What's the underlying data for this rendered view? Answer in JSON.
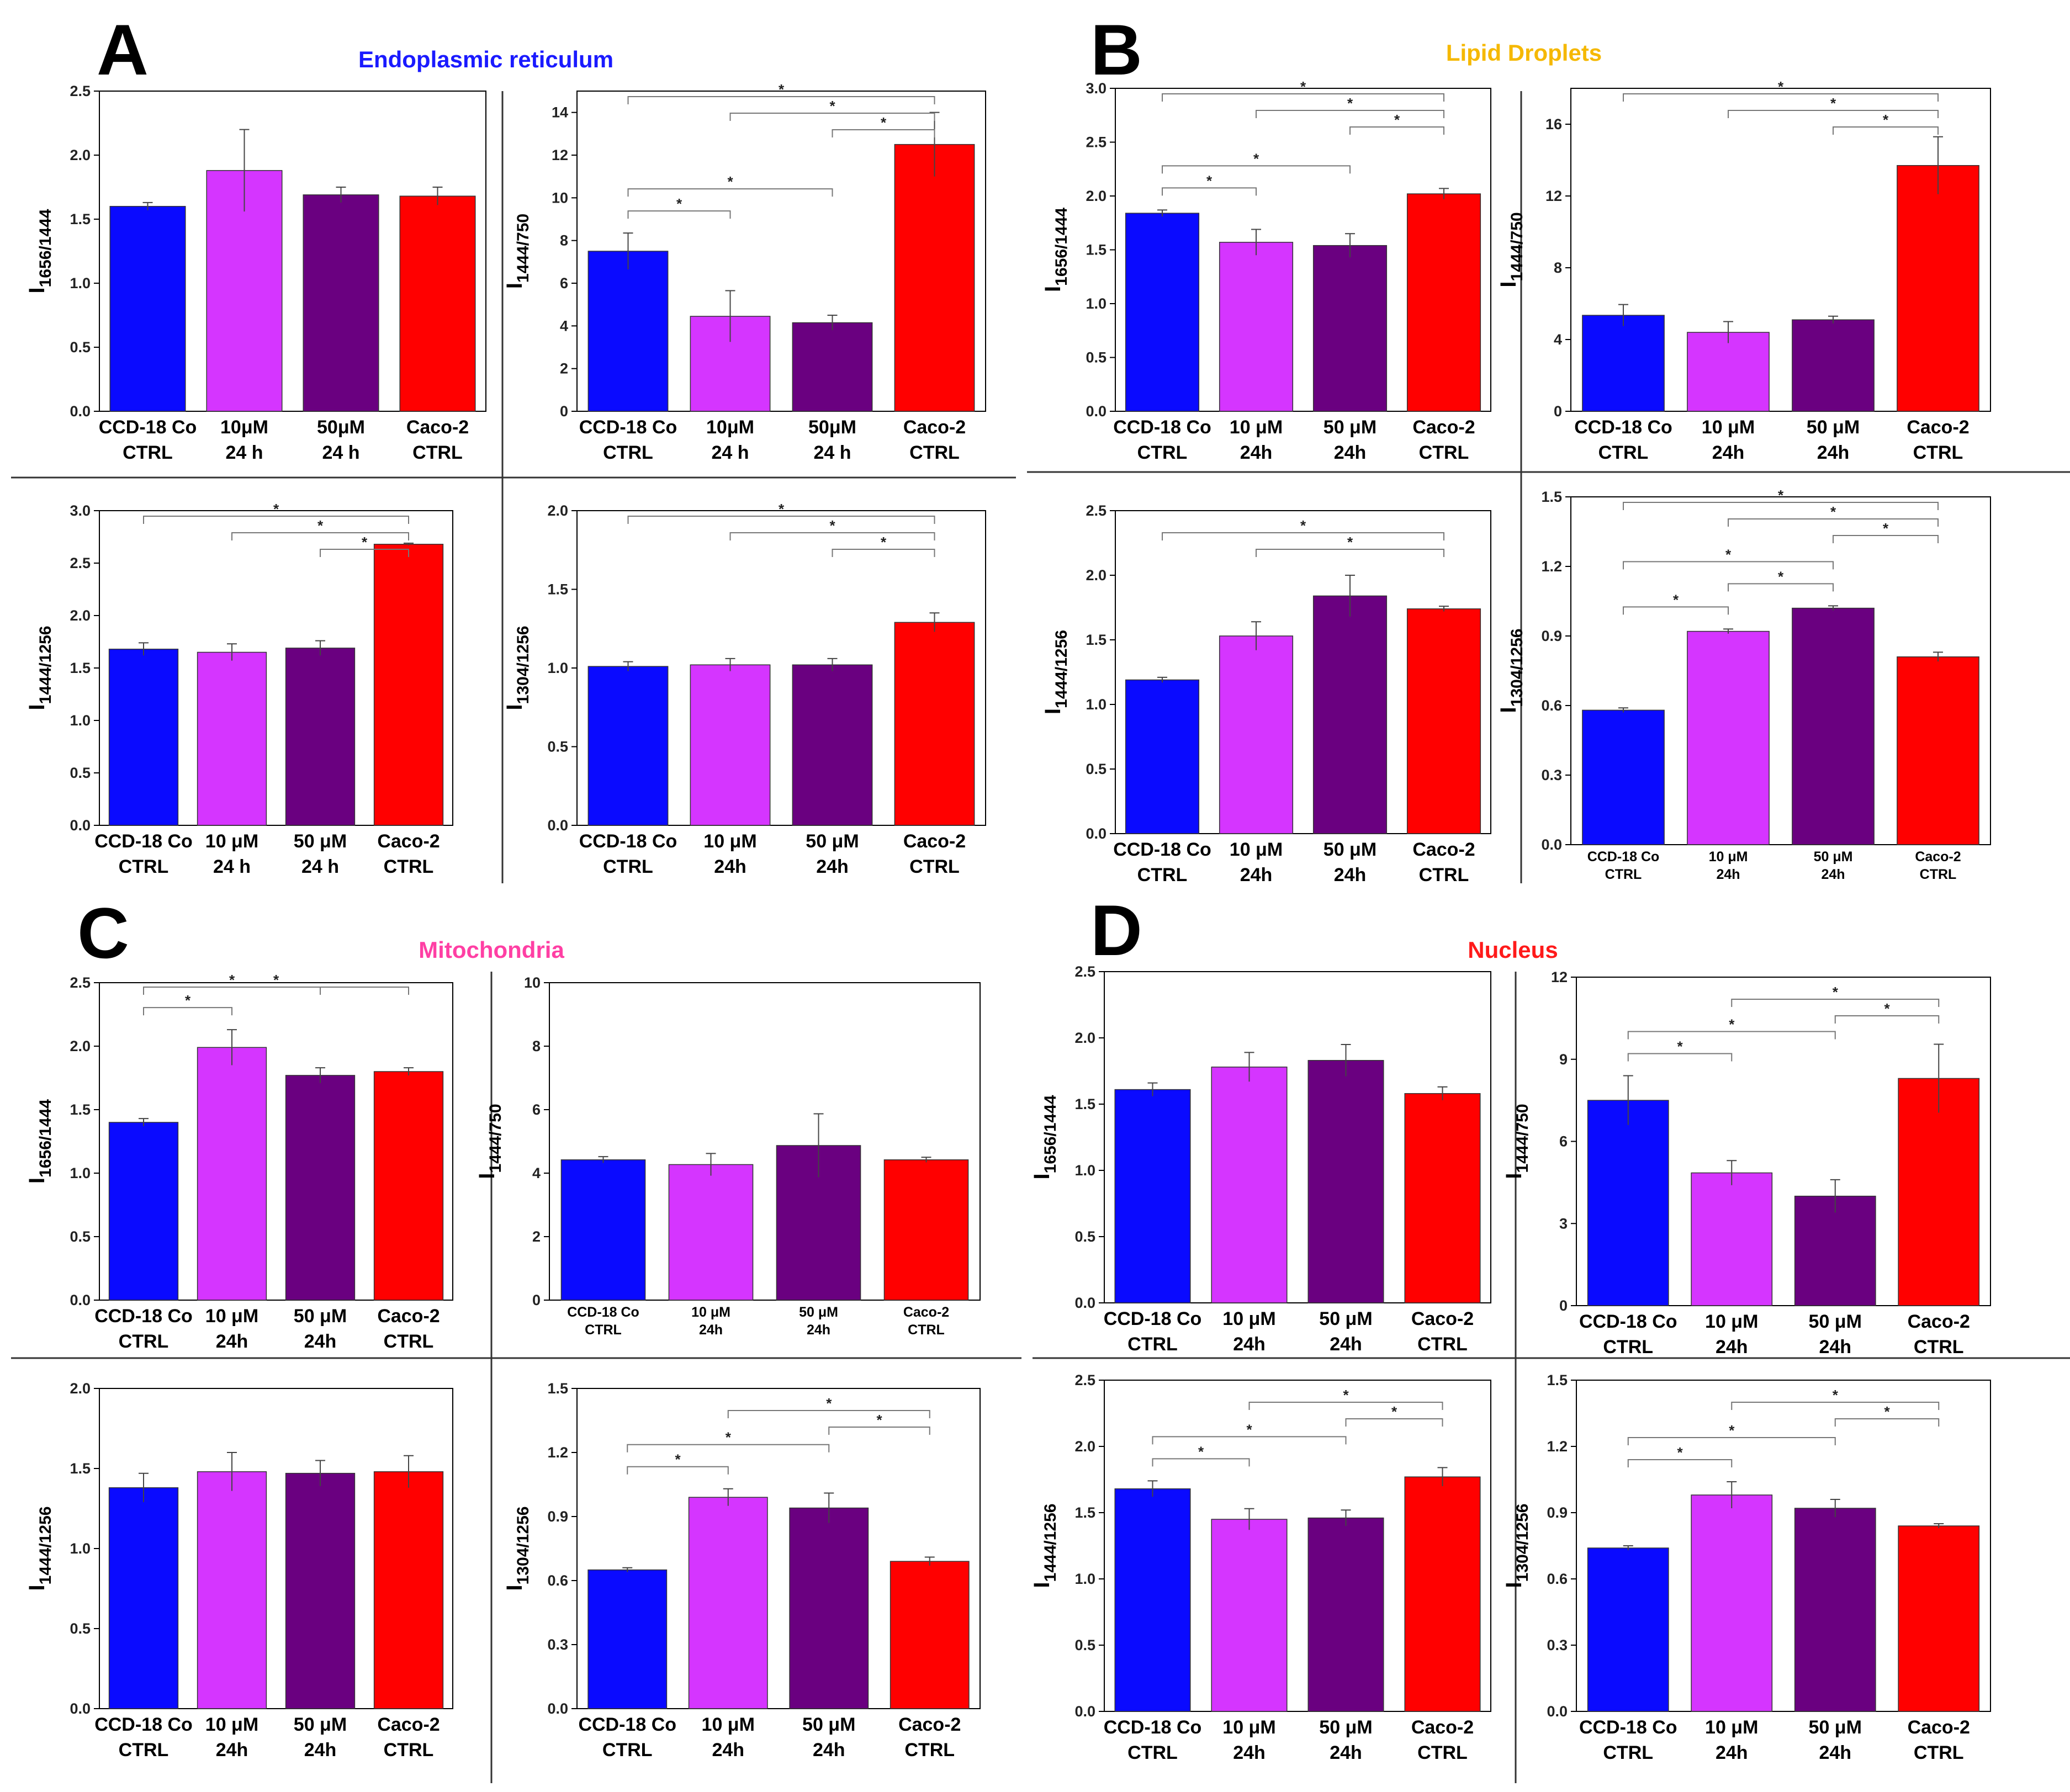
{
  "panels": [
    {
      "letter": "A",
      "title": "Endoplasmic reticulum",
      "title_color": "#1a1aff"
    },
    {
      "letter": "B",
      "title": "Lipid Droplets",
      "title_color": "#f5b800"
    },
    {
      "letter": "C",
      "title": "Mitochondria",
      "title_color": "#ff3fa4"
    },
    {
      "letter": "D",
      "title": "Nucleus",
      "title_color": "#ff1a1a"
    }
  ],
  "bar_colors": [
    "#0a0aff",
    "#d535ff",
    "#6a0080",
    "#ff0000"
  ],
  "chart_data": [
    {
      "id": "A1",
      "type": "bar",
      "ylabel_main": "I",
      "ylabel_sub": "1656/1444",
      "ylim": [
        0,
        2.5
      ],
      "ticks": [
        0,
        0.5,
        1.0,
        1.5,
        2.0,
        2.5
      ],
      "tick_labels": [
        "0.0",
        "0.5",
        "1.0",
        "1.5",
        "2.0",
        "2.5"
      ],
      "categories": [
        [
          "CCD-18 Co",
          "CTRL"
        ],
        [
          "10μM",
          "24 h"
        ],
        [
          "50μM",
          "24 h"
        ],
        [
          "Caco-2",
          "CTRL"
        ]
      ],
      "values": [
        1.6,
        1.88,
        1.69,
        1.68
      ],
      "errors": [
        0.03,
        0.32,
        0.06,
        0.07
      ],
      "significance": []
    },
    {
      "id": "A2",
      "type": "bar",
      "ylabel_main": "I",
      "ylabel_sub": "1444/750",
      "ylim": [
        0,
        15
      ],
      "ticks": [
        0,
        2,
        4,
        6,
        8,
        10,
        12,
        14
      ],
      "tick_labels": [
        "0",
        "2",
        "4",
        "6",
        "8",
        "10",
        "12",
        "14"
      ],
      "categories": [
        [
          "CCD-18 Co",
          "CTRL"
        ],
        [
          "10μM",
          "24 h"
        ],
        [
          "50μM",
          "24 h"
        ],
        [
          "Caco-2",
          "CTRL"
        ]
      ],
      "values": [
        7.5,
        4.45,
        4.15,
        12.5
      ],
      "errors": [
        0.85,
        1.2,
        0.35,
        1.5
      ],
      "significance": [
        {
          "from": 0,
          "to": 1,
          "level": 0,
          "label": "*"
        },
        {
          "from": 0,
          "to": 2,
          "level": 1,
          "label": "*"
        },
        {
          "from": 2,
          "to": 3,
          "level": 0,
          "label": "*",
          "top": true
        },
        {
          "from": 1,
          "to": 3,
          "level": 1,
          "label": "*",
          "top": true
        },
        {
          "from": 0,
          "to": 3,
          "level": 2,
          "label": "*",
          "top": true
        }
      ]
    },
    {
      "id": "A3",
      "type": "bar",
      "ylabel_main": "I",
      "ylabel_sub": "1444/1256",
      "ylim": [
        0,
        3.0
      ],
      "ticks": [
        0,
        0.5,
        1.0,
        1.5,
        2.0,
        2.5,
        3.0
      ],
      "tick_labels": [
        "0.0",
        "0.5",
        "1.0",
        "1.5",
        "2.0",
        "2.5",
        "3.0"
      ],
      "categories": [
        [
          "CCD-18 Co",
          "CTRL"
        ],
        [
          "10 μM",
          "24 h"
        ],
        [
          "50 μM",
          "24 h"
        ],
        [
          "Caco-2",
          "CTRL"
        ]
      ],
      "values": [
        1.68,
        1.65,
        1.69,
        2.68
      ],
      "errors": [
        0.06,
        0.08,
        0.07,
        0.01
      ],
      "significance": [
        {
          "from": 2,
          "to": 3,
          "level": 0,
          "label": "*",
          "top": true
        },
        {
          "from": 1,
          "to": 3,
          "level": 1,
          "label": "*",
          "top": true
        },
        {
          "from": 0,
          "to": 3,
          "level": 2,
          "label": "*",
          "top": true
        }
      ]
    },
    {
      "id": "A4",
      "type": "bar",
      "ylabel_main": "I",
      "ylabel_sub": "1304/1256",
      "ylim": [
        0,
        2.0
      ],
      "ticks": [
        0,
        0.5,
        1.0,
        1.5,
        2.0
      ],
      "tick_labels": [
        "0.0",
        "0.5",
        "1.0",
        "1.5",
        "2.0"
      ],
      "categories": [
        [
          "CCD-18 Co",
          "CTRL"
        ],
        [
          "10 μM",
          "24h"
        ],
        [
          "50 μM",
          "24h"
        ],
        [
          "Caco-2",
          "CTRL"
        ]
      ],
      "values": [
        1.01,
        1.02,
        1.02,
        1.29
      ],
      "errors": [
        0.03,
        0.04,
        0.04,
        0.06
      ],
      "significance": [
        {
          "from": 2,
          "to": 3,
          "level": 0,
          "label": "*",
          "top": true
        },
        {
          "from": 1,
          "to": 3,
          "level": 1,
          "label": "*",
          "top": true
        },
        {
          "from": 0,
          "to": 3,
          "level": 2,
          "label": "*",
          "top": true
        }
      ]
    },
    {
      "id": "B1",
      "type": "bar",
      "ylabel_main": "I",
      "ylabel_sub": "1656/1444",
      "ylim": [
        0,
        3.0
      ],
      "ticks": [
        0,
        0.5,
        1.0,
        1.5,
        2.0,
        2.5,
        3.0
      ],
      "tick_labels": [
        "0.0",
        "0.5",
        "1.0",
        "1.5",
        "2.0",
        "2.5",
        "3.0"
      ],
      "categories": [
        [
          "CCD-18 Co",
          "CTRL"
        ],
        [
          "10 μM",
          "24h"
        ],
        [
          "50 μM",
          "24h"
        ],
        [
          "Caco-2",
          "CTRL"
        ]
      ],
      "values": [
        1.84,
        1.57,
        1.54,
        2.02
      ],
      "errors": [
        0.03,
        0.12,
        0.11,
        0.05
      ],
      "significance": [
        {
          "from": 0,
          "to": 1,
          "level": 0,
          "label": "*"
        },
        {
          "from": 0,
          "to": 2,
          "level": 1,
          "label": "*"
        },
        {
          "from": 2,
          "to": 3,
          "level": 0,
          "label": "*",
          "top": true
        },
        {
          "from": 1,
          "to": 3,
          "level": 1,
          "label": "*",
          "top": true
        },
        {
          "from": 0,
          "to": 3,
          "level": 2,
          "label": "*",
          "top": true
        }
      ]
    },
    {
      "id": "B2",
      "type": "bar",
      "ylabel_main": "I",
      "ylabel_sub": "1444/750",
      "ylim": [
        0,
        18
      ],
      "ticks": [
        0,
        4,
        8,
        12,
        16
      ],
      "tick_labels": [
        "0",
        "4",
        "8",
        "12",
        "16"
      ],
      "categories": [
        [
          "CCD-18 Co",
          "CTRL"
        ],
        [
          "10 μM",
          "24h"
        ],
        [
          "50 μM",
          "24h"
        ],
        [
          "Caco-2",
          "CTRL"
        ]
      ],
      "values": [
        5.35,
        4.4,
        5.1,
        13.7
      ],
      "errors": [
        0.6,
        0.6,
        0.2,
        1.6
      ],
      "significance": [
        {
          "from": 2,
          "to": 3,
          "level": 0,
          "label": "*",
          "top": true
        },
        {
          "from": 1,
          "to": 3,
          "level": 1,
          "label": "*",
          "top": true
        },
        {
          "from": 0,
          "to": 3,
          "level": 2,
          "label": "*",
          "top": true
        }
      ]
    },
    {
      "id": "B3",
      "type": "bar",
      "ylabel_main": "I",
      "ylabel_sub": "1444/1256",
      "ylim": [
        0,
        2.5
      ],
      "ticks": [
        0,
        0.5,
        1.0,
        1.5,
        2.0,
        2.5
      ],
      "tick_labels": [
        "0.0",
        "0.5",
        "1.0",
        "1.5",
        "2.0",
        "2.5"
      ],
      "categories": [
        [
          "CCD-18 Co",
          "CTRL"
        ],
        [
          "10 μM",
          "24h"
        ],
        [
          "50 μM",
          "24h"
        ],
        [
          "Caco-2",
          "CTRL"
        ]
      ],
      "values": [
        1.19,
        1.53,
        1.84,
        1.74
      ],
      "errors": [
        0.02,
        0.11,
        0.16,
        0.02
      ],
      "significance": [
        {
          "from": 1,
          "to": 3,
          "level": 0,
          "label": "*",
          "top": true
        },
        {
          "from": 0,
          "to": 3,
          "level": 1,
          "label": "*",
          "top": true
        }
      ]
    },
    {
      "id": "B4",
      "type": "bar",
      "ylabel_main": "I",
      "ylabel_sub": "1304/1256",
      "ylim": [
        0,
        1.5
      ],
      "ticks": [
        0,
        0.3,
        0.6,
        0.9,
        1.2,
        1.5
      ],
      "tick_labels": [
        "0.0",
        "0.3",
        "0.6",
        "0.9",
        "1.2",
        "1.5"
      ],
      "small_labels": true,
      "categories": [
        [
          "CCD-18 Co",
          "CTRL"
        ],
        [
          "10 μM",
          "24h"
        ],
        [
          "50 μM",
          "24h"
        ],
        [
          "Caco-2",
          "CTRL"
        ]
      ],
      "values": [
        0.58,
        0.92,
        1.02,
        0.81
      ],
      "errors": [
        0.01,
        0.01,
        0.01,
        0.02
      ],
      "significance": [
        {
          "from": 0,
          "to": 1,
          "level": 0,
          "label": "*"
        },
        {
          "from": 1,
          "to": 2,
          "level": 0,
          "label": "*"
        },
        {
          "from": 0,
          "to": 2,
          "level": 1,
          "label": "*"
        },
        {
          "from": 2,
          "to": 3,
          "level": 0,
          "label": "*",
          "top": true
        },
        {
          "from": 1,
          "to": 3,
          "level": 1,
          "label": "*",
          "top": true
        },
        {
          "from": 0,
          "to": 3,
          "level": 2,
          "label": "*",
          "top": true
        }
      ]
    },
    {
      "id": "C1",
      "type": "bar",
      "ylabel_main": "I",
      "ylabel_sub": "1656/1444",
      "ylim": [
        0,
        2.5
      ],
      "ticks": [
        0,
        0.5,
        1.0,
        1.5,
        2.0,
        2.5
      ],
      "tick_labels": [
        "0.0",
        "0.5",
        "1.0",
        "1.5",
        "2.0",
        "2.5"
      ],
      "categories": [
        [
          "CCD-18 Co",
          "CTRL"
        ],
        [
          "10 μM",
          "24h"
        ],
        [
          "50 μM",
          "24h"
        ],
        [
          "Caco-2",
          "CTRL"
        ]
      ],
      "values": [
        1.4,
        1.99,
        1.77,
        1.8
      ],
      "errors": [
        0.03,
        0.14,
        0.06,
        0.03
      ],
      "significance": [
        {
          "from": 0,
          "to": 1,
          "level": 0,
          "label": "*"
        },
        {
          "from": 0,
          "to": 2,
          "level": 1,
          "label": "*"
        },
        {
          "from": 0,
          "to": 3,
          "level": 2,
          "label": "*"
        }
      ]
    },
    {
      "id": "C2",
      "type": "bar",
      "ylabel_main": "I",
      "ylabel_sub": "1444/750",
      "ylim": [
        0,
        10
      ],
      "ticks": [
        0,
        2,
        4,
        6,
        8,
        10
      ],
      "tick_labels": [
        "0",
        "2",
        "4",
        "6",
        "8",
        "10"
      ],
      "small_labels": true,
      "categories": [
        [
          "CCD-18 Co",
          "CTRL"
        ],
        [
          "10 μM",
          "24h"
        ],
        [
          "50 μM",
          "24h"
        ],
        [
          "Caco-2",
          "CTRL"
        ]
      ],
      "values": [
        4.42,
        4.27,
        4.87,
        4.42
      ],
      "errors": [
        0.1,
        0.35,
        1.0,
        0.08
      ],
      "significance": []
    },
    {
      "id": "C3",
      "type": "bar",
      "ylabel_main": "I",
      "ylabel_sub": "1444/1256",
      "ylim": [
        0,
        2.0
      ],
      "ticks": [
        0,
        0.5,
        1.0,
        1.5,
        2.0
      ],
      "tick_labels": [
        "0.0",
        "0.5",
        "1.0",
        "1.5",
        "2.0"
      ],
      "categories": [
        [
          "CCD-18 Co",
          "CTRL"
        ],
        [
          "10 μM",
          "24h"
        ],
        [
          "50 μM",
          "24h"
        ],
        [
          "Caco-2",
          "CTRL"
        ]
      ],
      "values": [
        1.38,
        1.48,
        1.47,
        1.48
      ],
      "errors": [
        0.09,
        0.12,
        0.08,
        0.1
      ],
      "significance": []
    },
    {
      "id": "C4",
      "type": "bar",
      "ylabel_main": "I",
      "ylabel_sub": "1304/1256",
      "ylim": [
        0,
        1.5
      ],
      "ticks": [
        0,
        0.3,
        0.6,
        0.9,
        1.2,
        1.5
      ],
      "tick_labels": [
        "0.0",
        "0.3",
        "0.6",
        "0.9",
        "1.2",
        "1.5"
      ],
      "categories": [
        [
          "CCD-18 Co",
          "CTRL"
        ],
        [
          "10 μM",
          "24h"
        ],
        [
          "50 μM",
          "24h"
        ],
        [
          "Caco-2",
          "CTRL"
        ]
      ],
      "values": [
        0.65,
        0.99,
        0.94,
        0.69
      ],
      "errors": [
        0.01,
        0.04,
        0.07,
        0.02
      ],
      "significance": [
        {
          "from": 0,
          "to": 1,
          "level": 0,
          "label": "*"
        },
        {
          "from": 0,
          "to": 2,
          "level": 1,
          "label": "*"
        },
        {
          "from": 2,
          "to": 3,
          "level": 0,
          "label": "*",
          "top": true
        },
        {
          "from": 1,
          "to": 3,
          "level": 1,
          "label": "*",
          "top": true
        }
      ]
    },
    {
      "id": "D1",
      "type": "bar",
      "ylabel_main": "I",
      "ylabel_sub": "1656/1444",
      "ylim": [
        0,
        2.5
      ],
      "ticks": [
        0,
        0.5,
        1.0,
        1.5,
        2.0,
        2.5
      ],
      "tick_labels": [
        "0.0",
        "0.5",
        "1.0",
        "1.5",
        "2.0",
        "2.5"
      ],
      "categories": [
        [
          "CCD-18 Co",
          "CTRL"
        ],
        [
          "10 μM",
          "24h"
        ],
        [
          "50 μM",
          "24h"
        ],
        [
          "Caco-2",
          "CTRL"
        ]
      ],
      "values": [
        1.61,
        1.78,
        1.83,
        1.58
      ],
      "errors": [
        0.05,
        0.11,
        0.12,
        0.05
      ],
      "significance": []
    },
    {
      "id": "D2",
      "type": "bar",
      "ylabel_main": "I",
      "ylabel_sub": "1444/750",
      "ylim": [
        0,
        12
      ],
      "ticks": [
        0,
        3,
        6,
        9,
        12
      ],
      "tick_labels": [
        "0",
        "3",
        "6",
        "9",
        "12"
      ],
      "categories": [
        [
          "CCD-18 Co",
          "CTRL"
        ],
        [
          "10 μM",
          "24h"
        ],
        [
          "50 μM",
          "24h"
        ],
        [
          "Caco-2",
          "CTRL"
        ]
      ],
      "values": [
        7.5,
        4.85,
        4.0,
        8.3
      ],
      "errors": [
        0.9,
        0.45,
        0.6,
        1.25
      ],
      "significance": [
        {
          "from": 0,
          "to": 1,
          "level": 0,
          "label": "*"
        },
        {
          "from": 0,
          "to": 2,
          "level": 1,
          "label": "*"
        },
        {
          "from": 2,
          "to": 3,
          "level": 0,
          "label": "*",
          "top": true
        },
        {
          "from": 1,
          "to": 3,
          "level": 1,
          "label": "*",
          "top": true
        }
      ]
    },
    {
      "id": "D3",
      "type": "bar",
      "ylabel_main": "I",
      "ylabel_sub": "1444/1256",
      "ylim": [
        0,
        2.5
      ],
      "ticks": [
        0,
        0.5,
        1.0,
        1.5,
        2.0,
        2.5
      ],
      "tick_labels": [
        "0.0",
        "0.5",
        "1.0",
        "1.5",
        "2.0",
        "2.5"
      ],
      "categories": [
        [
          "CCD-18 Co",
          "CTRL"
        ],
        [
          "10 μM",
          "24h"
        ],
        [
          "50 μM",
          "24h"
        ],
        [
          "Caco-2",
          "CTRL"
        ]
      ],
      "values": [
        1.68,
        1.45,
        1.46,
        1.77
      ],
      "errors": [
        0.06,
        0.08,
        0.06,
        0.07
      ],
      "significance": [
        {
          "from": 0,
          "to": 1,
          "level": 0,
          "label": "*"
        },
        {
          "from": 0,
          "to": 2,
          "level": 1,
          "label": "*"
        },
        {
          "from": 2,
          "to": 3,
          "level": 0,
          "label": "*",
          "top": true
        },
        {
          "from": 1,
          "to": 3,
          "level": 1,
          "label": "*",
          "top": true
        }
      ]
    },
    {
      "id": "D4",
      "type": "bar",
      "ylabel_main": "I",
      "ylabel_sub": "1304/1256",
      "ylim": [
        0,
        1.5
      ],
      "ticks": [
        0,
        0.3,
        0.6,
        0.9,
        1.2,
        1.5
      ],
      "tick_labels": [
        "0.0",
        "0.3",
        "0.6",
        "0.9",
        "1.2",
        "1.5"
      ],
      "categories": [
        [
          "CCD-18 Co",
          "CTRL"
        ],
        [
          "10 μM",
          "24h"
        ],
        [
          "50 μM",
          "24h"
        ],
        [
          "Caco-2",
          "CTRL"
        ]
      ],
      "values": [
        0.74,
        0.98,
        0.92,
        0.84
      ],
      "errors": [
        0.01,
        0.06,
        0.04,
        0.01
      ],
      "significance": [
        {
          "from": 0,
          "to": 1,
          "level": 0,
          "label": "*"
        },
        {
          "from": 0,
          "to": 2,
          "level": 1,
          "label": "*"
        },
        {
          "from": 2,
          "to": 3,
          "level": 0,
          "label": "*",
          "top": true
        },
        {
          "from": 1,
          "to": 3,
          "level": 1,
          "label": "*",
          "top": true
        }
      ]
    }
  ]
}
